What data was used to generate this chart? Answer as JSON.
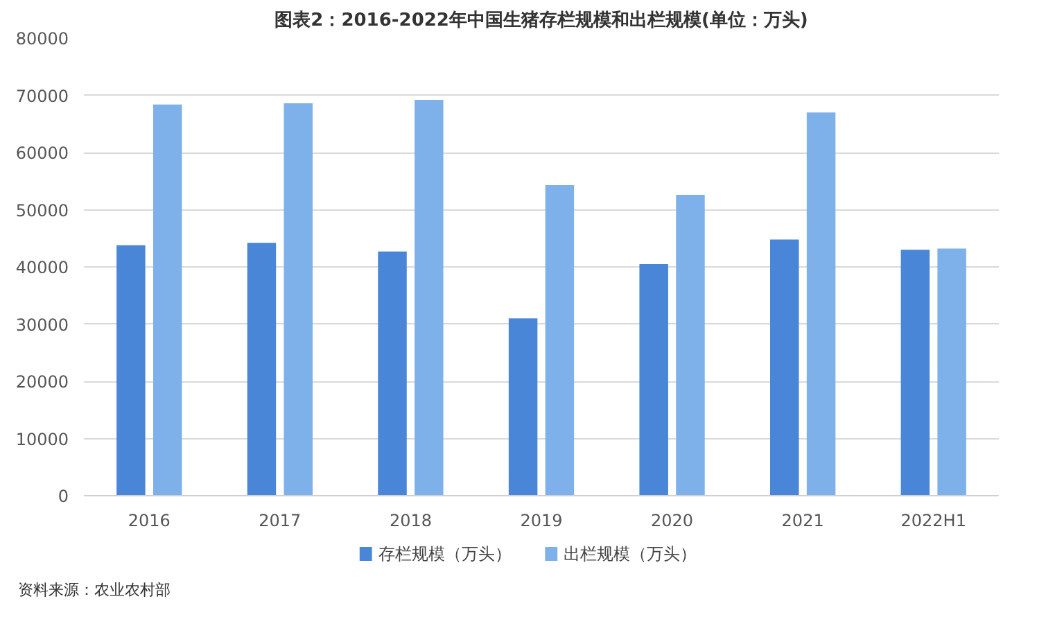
{
  "chart_data": {
    "type": "bar",
    "title": "图表2：2016-2022年中国生猪存栏规模和出栏规模(单位：万头)",
    "categories": [
      "2016",
      "2017",
      "2018",
      "2019",
      "2020",
      "2021",
      "2022H1"
    ],
    "series": [
      {
        "name": "存栏规模（万头）",
        "color": "#4a86d8",
        "values": [
          43800,
          44200,
          42700,
          31000,
          40500,
          44800,
          43000
        ]
      },
      {
        "name": "出栏规模（万头）",
        "color": "#7eb0ea",
        "values": [
          68400,
          68600,
          69200,
          54300,
          52600,
          67000,
          43200
        ]
      }
    ],
    "ylim": [
      0,
      80000
    ],
    "yticks": [
      0,
      10000,
      20000,
      30000,
      40000,
      50000,
      60000,
      70000,
      80000
    ],
    "grid": "y",
    "legend": "bottom",
    "annotations": [
      "资料来源：农业农村部"
    ]
  }
}
